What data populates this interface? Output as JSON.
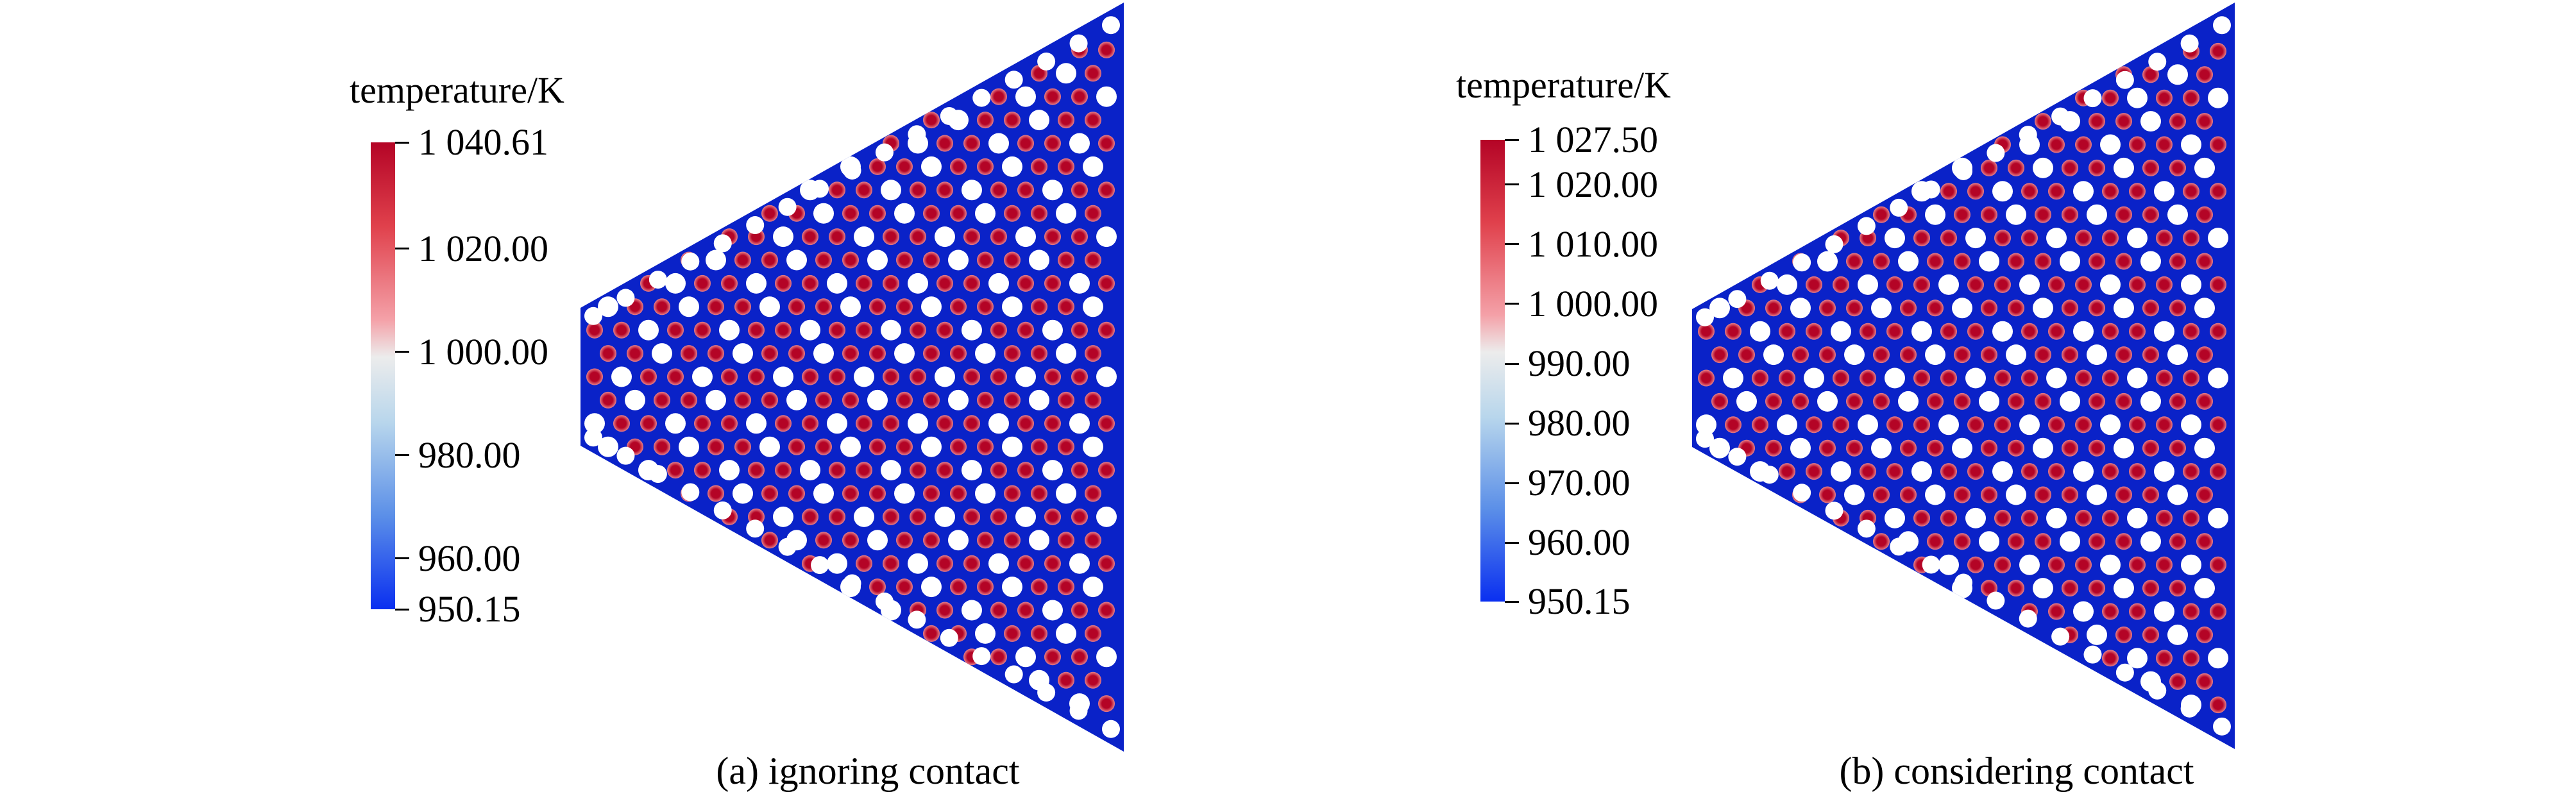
{
  "panels": [
    {
      "id": "a",
      "caption": "(a) ignoring contact",
      "colorbar": {
        "title": "temperature/K",
        "min": 950.15,
        "max": 1040.61,
        "ticks": [
          {
            "value": 1040.61,
            "label": "1 040.61"
          },
          {
            "value": 1020.0,
            "label": "1 020.00"
          },
          {
            "value": 1000.0,
            "label": "1 000.00"
          },
          {
            "value": 980.0,
            "label": "980.00"
          },
          {
            "value": 960.0,
            "label": "960.00"
          },
          {
            "value": 950.15,
            "label": "950.15"
          }
        ]
      }
    },
    {
      "id": "b",
      "caption": "(b) considering contact",
      "colorbar": {
        "title": "temperature/K",
        "min": 950.15,
        "max": 1027.5,
        "ticks": [
          {
            "value": 1027.5,
            "label": "1 027.50"
          },
          {
            "value": 1020.0,
            "label": "1 020.00"
          },
          {
            "value": 1010.0,
            "label": "1 010.00"
          },
          {
            "value": 1000.0,
            "label": "1 000.00"
          },
          {
            "value": 990.0,
            "label": "990.00"
          },
          {
            "value": 980.0,
            "label": "980.00"
          },
          {
            "value": 970.0,
            "label": "970.00"
          },
          {
            "value": 960.0,
            "label": "960.00"
          },
          {
            "value": 950.15,
            "label": "950.15"
          }
        ]
      }
    }
  ],
  "colors": {
    "matrix": "#0a22c8",
    "hot": "#b40426",
    "warm": "#e8808a",
    "channel": "#ffffff"
  }
}
